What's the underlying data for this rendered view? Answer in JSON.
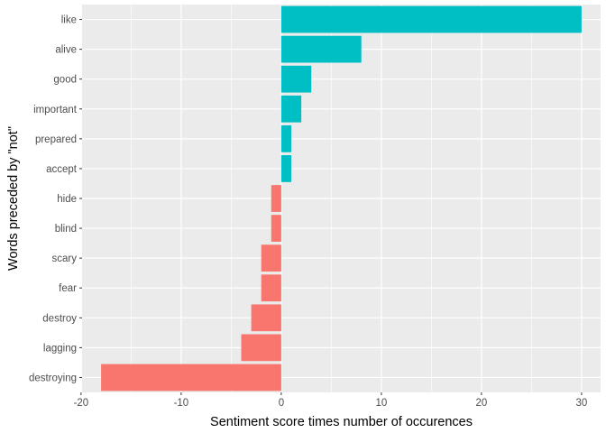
{
  "chart_data": {
    "type": "bar",
    "orientation": "horizontal",
    "xlabel": "Sentiment score times number of occurences",
    "ylabel": "Words preceded by \"not\"",
    "xlim": [
      -19.9,
      31.9
    ],
    "xticks": [
      -20,
      -10,
      0,
      10,
      20,
      30
    ],
    "grid": true,
    "legend": "none",
    "colors": {
      "positive": "#00BFC4",
      "negative": "#F8766D",
      "panel": "#EBEBEB",
      "grid": "#FFFFFF"
    },
    "categories": [
      "like",
      "alive",
      "good",
      "important",
      "prepared",
      "accept",
      "hide",
      "blind",
      "scary",
      "fear",
      "destroy",
      "lagging",
      "destroying"
    ],
    "values": [
      30,
      8,
      3,
      2,
      1,
      1,
      -1,
      -1,
      -2,
      -2,
      -3,
      -4,
      -18
    ]
  }
}
